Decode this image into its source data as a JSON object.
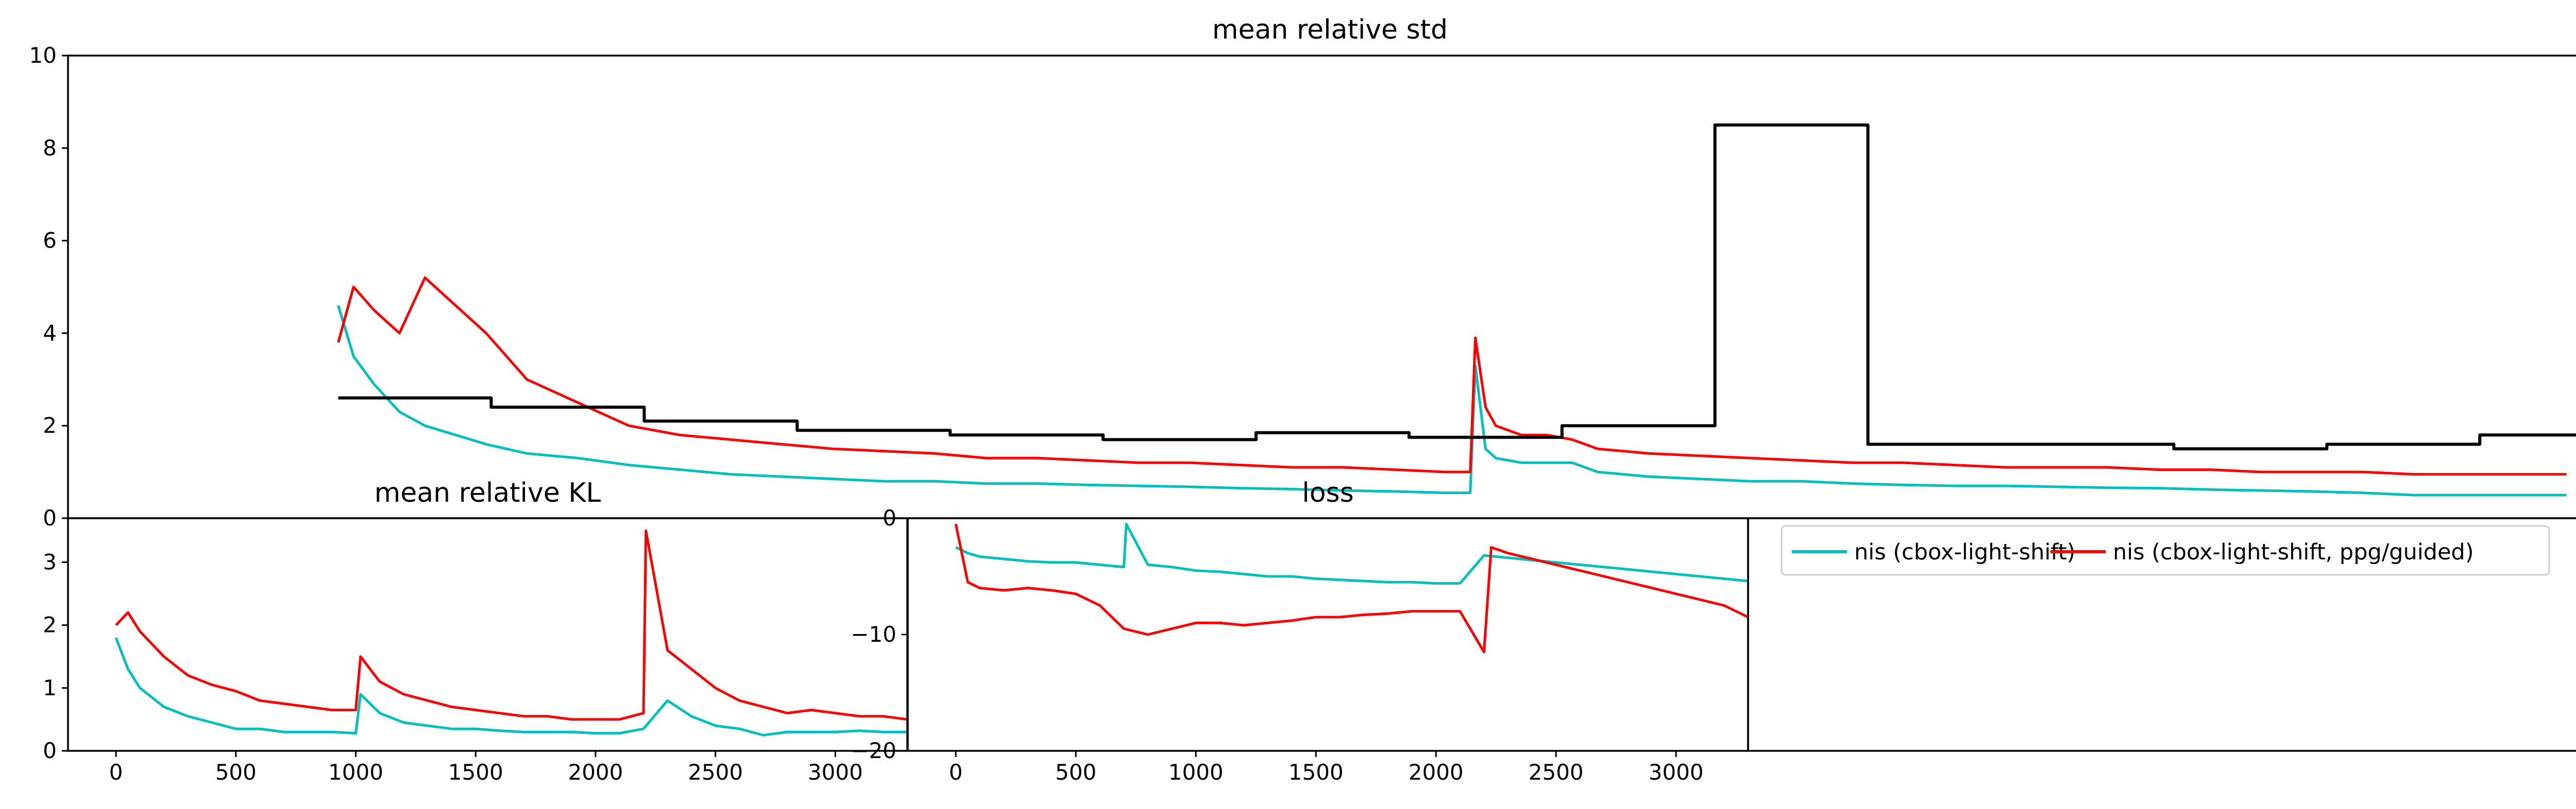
{
  "colors": {
    "nis": "#00bfbf",
    "ppg": "#ff0000",
    "third": "#000000"
  },
  "chart_data": [
    {
      "type": "line",
      "title": "mean relative std",
      "xlim": [
        -200,
        4750
      ],
      "ylim": [
        0,
        10
      ],
      "yticks": [
        0,
        2,
        4,
        6,
        8,
        10
      ],
      "xticks": [],
      "series": [
        {
          "color": "#00bfbf",
          "x": [
            330,
            360,
            400,
            450,
            500,
            560,
            620,
            700,
            800,
            900,
            1000,
            1100,
            1200,
            1300,
            1400,
            1500,
            1600,
            1700,
            1800,
            1900,
            2000,
            2100,
            2200,
            2300,
            2400,
            2500,
            2550,
            2560,
            2580,
            2600,
            2650,
            2700,
            2750,
            2800,
            2900,
            3000,
            3100,
            3200,
            3300,
            3400,
            3500,
            3600,
            3700,
            3800,
            3900,
            4000,
            4100,
            4200,
            4300,
            4400,
            4500,
            4600,
            4700
          ],
          "y": [
            4.6,
            3.5,
            2.9,
            2.3,
            2.0,
            1.8,
            1.6,
            1.4,
            1.3,
            1.15,
            1.05,
            0.95,
            0.9,
            0.85,
            0.8,
            0.8,
            0.75,
            0.75,
            0.72,
            0.7,
            0.68,
            0.65,
            0.63,
            0.6,
            0.58,
            0.55,
            0.55,
            3.3,
            1.5,
            1.3,
            1.2,
            1.2,
            1.2,
            1.0,
            0.9,
            0.85,
            0.8,
            0.8,
            0.75,
            0.72,
            0.7,
            0.7,
            0.68,
            0.66,
            0.65,
            0.62,
            0.6,
            0.58,
            0.55,
            0.5,
            0.5,
            0.5,
            0.5
          ]
        },
        {
          "color": "#ff0000",
          "x": [
            330,
            360,
            400,
            450,
            500,
            560,
            620,
            700,
            800,
            900,
            1000,
            1100,
            1200,
            1300,
            1400,
            1500,
            1600,
            1700,
            1800,
            1900,
            2000,
            2100,
            2200,
            2300,
            2400,
            2500,
            2550,
            2560,
            2580,
            2600,
            2650,
            2700,
            2750,
            2800,
            2900,
            3000,
            3100,
            3200,
            3300,
            3400,
            3500,
            3600,
            3700,
            3800,
            3900,
            4000,
            4100,
            4200,
            4300,
            4400,
            4500,
            4600,
            4700
          ],
          "y": [
            3.8,
            5.0,
            4.5,
            4.0,
            5.2,
            4.6,
            4.0,
            3.0,
            2.5,
            2.0,
            1.8,
            1.7,
            1.6,
            1.5,
            1.45,
            1.4,
            1.3,
            1.3,
            1.25,
            1.2,
            1.2,
            1.15,
            1.1,
            1.1,
            1.05,
            1.0,
            1.0,
            3.9,
            2.4,
            2.0,
            1.8,
            1.8,
            1.7,
            1.5,
            1.4,
            1.35,
            1.3,
            1.25,
            1.2,
            1.2,
            1.15,
            1.1,
            1.1,
            1.1,
            1.05,
            1.05,
            1.0,
            1.0,
            1.0,
            0.95,
            0.95,
            0.95,
            0.95
          ]
        },
        {
          "color": "#000000",
          "x": [
            330,
            630,
            630,
            930,
            930,
            1230,
            1230,
            1530,
            1530,
            1830,
            1830,
            2130,
            2130,
            2430,
            2430,
            2730,
            2730,
            3030,
            3030,
            3330,
            3330,
            3630,
            3630,
            3930,
            3930,
            4230,
            4230,
            4530,
            4530,
            4730
          ],
          "y": [
            2.6,
            2.6,
            2.4,
            2.4,
            2.1,
            2.1,
            1.9,
            1.9,
            1.8,
            1.8,
            1.7,
            1.7,
            1.85,
            1.85,
            1.75,
            1.75,
            2.0,
            2.0,
            8.5,
            8.5,
            1.6,
            1.6,
            1.6,
            1.6,
            1.5,
            1.5,
            1.6,
            1.6,
            1.8,
            1.8
          ]
        }
      ]
    },
    {
      "type": "line",
      "title": "mean relative KL",
      "xlim": [
        -200,
        3300
      ],
      "ylim": [
        0,
        3.7
      ],
      "yticks": [
        0,
        1,
        2,
        3
      ],
      "xticks": [
        0,
        500,
        1000,
        1500,
        2000,
        2500,
        3000
      ],
      "series": [
        {
          "color": "#00bfbf",
          "x": [
            0,
            50,
            100,
            200,
            300,
            400,
            500,
            600,
            700,
            800,
            900,
            1000,
            1020,
            1100,
            1200,
            1300,
            1400,
            1500,
            1600,
            1700,
            1800,
            1900,
            2000,
            2100,
            2200,
            2300,
            2400,
            2500,
            2600,
            2700,
            2800,
            2900,
            3000,
            3100,
            3200,
            3300
          ],
          "y": [
            1.8,
            1.3,
            1.0,
            0.7,
            0.55,
            0.45,
            0.35,
            0.35,
            0.3,
            0.3,
            0.3,
            0.28,
            0.9,
            0.6,
            0.45,
            0.4,
            0.35,
            0.35,
            0.32,
            0.3,
            0.3,
            0.3,
            0.28,
            0.28,
            0.35,
            0.8,
            0.55,
            0.4,
            0.35,
            0.25,
            0.3,
            0.3,
            0.3,
            0.32,
            0.3,
            0.3
          ]
        },
        {
          "color": "#ff0000",
          "x": [
            0,
            50,
            100,
            200,
            300,
            400,
            500,
            600,
            700,
            800,
            900,
            1000,
            1020,
            1100,
            1200,
            1300,
            1400,
            1500,
            1600,
            1700,
            1800,
            1900,
            2000,
            2100,
            2200,
            2210,
            2300,
            2400,
            2500,
            2600,
            2700,
            2800,
            2900,
            3000,
            3100,
            3200,
            3300
          ],
          "y": [
            2.0,
            2.2,
            1.9,
            1.5,
            1.2,
            1.05,
            0.95,
            0.8,
            0.75,
            0.7,
            0.65,
            0.65,
            1.5,
            1.1,
            0.9,
            0.8,
            0.7,
            0.65,
            0.6,
            0.55,
            0.55,
            0.5,
            0.5,
            0.5,
            0.6,
            3.5,
            1.6,
            1.3,
            1.0,
            0.8,
            0.7,
            0.6,
            0.65,
            0.6,
            0.55,
            0.55,
            0.5
          ]
        }
      ]
    },
    {
      "type": "line",
      "title": "loss",
      "xlim": [
        -200,
        3300
      ],
      "ylim": [
        -20,
        0
      ],
      "yticks": [
        0,
        -10,
        -20
      ],
      "xticks": [
        0,
        500,
        1000,
        1500,
        2000,
        2500,
        3000
      ],
      "series": [
        {
          "color": "#00bfbf",
          "x": [
            0,
            50,
            100,
            200,
            300,
            400,
            500,
            600,
            700,
            710,
            800,
            900,
            1000,
            1100,
            1200,
            1300,
            1400,
            1500,
            1600,
            1700,
            1800,
            1900,
            2000,
            2100,
            2200,
            2300,
            2400,
            2500,
            2600,
            2700,
            2800,
            2900,
            3000,
            3100,
            3200,
            3300
          ],
          "y": [
            -2.5,
            -3.0,
            -3.3,
            -3.5,
            -3.7,
            -3.8,
            -3.8,
            -4.0,
            -4.2,
            -0.5,
            -4.0,
            -4.2,
            -4.5,
            -4.6,
            -4.8,
            -5.0,
            -5.0,
            -5.2,
            -5.3,
            -5.4,
            -5.5,
            -5.5,
            -5.6,
            -5.6,
            -3.2,
            -3.4,
            -3.6,
            -3.8,
            -4.0,
            -4.2,
            -4.4,
            -4.6,
            -4.8,
            -5.0,
            -5.2,
            -5.4
          ]
        },
        {
          "color": "#ff0000",
          "x": [
            0,
            50,
            100,
            200,
            300,
            400,
            500,
            600,
            700,
            800,
            900,
            1000,
            1100,
            1200,
            1300,
            1400,
            1500,
            1600,
            1700,
            1800,
            1900,
            2000,
            2100,
            2200,
            2230,
            2300,
            2400,
            2500,
            2600,
            2700,
            2800,
            2900,
            3000,
            3100,
            3200,
            3300
          ],
          "y": [
            -0.5,
            -5.5,
            -6.0,
            -6.2,
            -6.0,
            -6.2,
            -6.5,
            -7.5,
            -9.5,
            -10.0,
            -9.5,
            -9.0,
            -9.0,
            -9.2,
            -9.0,
            -8.8,
            -8.5,
            -8.5,
            -8.3,
            -8.2,
            -8.0,
            -8.0,
            -8.0,
            -11.5,
            -2.5,
            -3.0,
            -3.5,
            -4.0,
            -4.5,
            -5.0,
            -5.5,
            -6.0,
            -6.5,
            -7.0,
            -7.5,
            -8.5
          ]
        }
      ]
    }
  ],
  "legend": {
    "placement": "top-left",
    "entries": [
      {
        "label": "nis (cbox-light-shift)",
        "color": "#00bfbf"
      },
      {
        "label": "nis (cbox-light-shift, ppg/guided)",
        "color": "#ff0000"
      }
    ]
  }
}
